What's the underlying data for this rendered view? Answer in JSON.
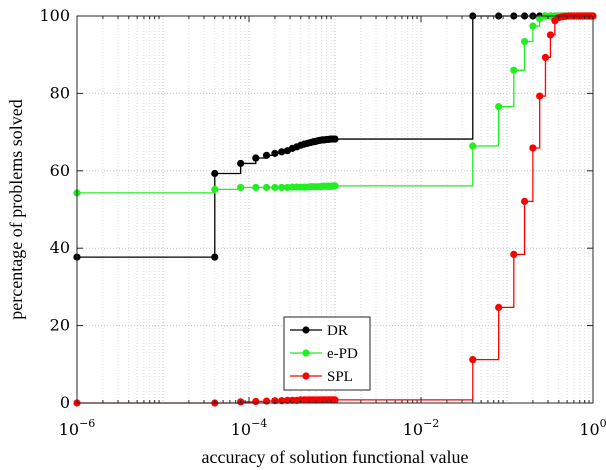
{
  "chart_data": {
    "type": "line",
    "step": true,
    "xscale": "log",
    "xlim": [
      1e-06,
      1
    ],
    "ylim": [
      0,
      100
    ],
    "xlabel": "accuracy of solution functional value",
    "ylabel": "percentage of problems solved",
    "grid": true,
    "legend_position": "bottom-center",
    "x_ticks": [
      {
        "value": 1e-06,
        "base": "10",
        "exp": "−6"
      },
      {
        "value": 0.0001,
        "base": "10",
        "exp": "−4"
      },
      {
        "value": 0.01,
        "base": "10",
        "exp": "−2"
      },
      {
        "value": 1,
        "base": "10",
        "exp": "0"
      }
    ],
    "y_ticks": [
      {
        "value": 0,
        "label": "0"
      },
      {
        "value": 20,
        "label": "20"
      },
      {
        "value": 40,
        "label": "40"
      },
      {
        "value": 60,
        "label": "60"
      },
      {
        "value": 80,
        "label": "80"
      },
      {
        "value": 100,
        "label": "100"
      }
    ],
    "series": [
      {
        "name": "DR",
        "color": "#000000",
        "x": [
          1e-06,
          4e-05,
          4e-05,
          8e-05,
          0.00012,
          0.00016,
          0.0002,
          0.00024,
          0.00028,
          0.00032,
          0.00036,
          0.0004,
          0.00044,
          0.00048,
          0.00052,
          0.00056,
          0.0006,
          0.00064,
          0.00068,
          0.00072,
          0.00076,
          0.0008,
          0.00084,
          0.00088,
          0.00092,
          0.00096,
          0.001,
          0.04,
          0.08,
          0.12,
          0.16,
          0.2,
          0.24,
          0.28,
          0.32,
          0.36,
          0.4,
          0.44,
          0.48,
          0.52,
          0.56,
          0.6,
          0.64,
          0.68,
          0.72,
          0.76,
          0.8,
          0.84,
          0.88,
          0.92,
          0.96,
          1
        ],
        "y": [
          37.7,
          37.7,
          59.3,
          61.9,
          63.3,
          64.0,
          64.5,
          64.9,
          65.2,
          65.8,
          66.2,
          66.6,
          66.9,
          67.1,
          67.3,
          67.5,
          67.6,
          67.8,
          67.9,
          68.0,
          68.0,
          68.1,
          68.1,
          68.2,
          68.2,
          68.2,
          68.2,
          100,
          100,
          100,
          100,
          100,
          100,
          100,
          100,
          100,
          100,
          100,
          100,
          100,
          100,
          100,
          100,
          100,
          100,
          100,
          100,
          100,
          100,
          100,
          100,
          100
        ]
      },
      {
        "name": "e-PD",
        "color": "#22ee22",
        "x": [
          1e-06,
          4e-05,
          8e-05,
          0.00012,
          0.00016,
          0.0002,
          0.00024,
          0.00028,
          0.00032,
          0.00036,
          0.0004,
          0.00044,
          0.00048,
          0.00052,
          0.00056,
          0.0006,
          0.00064,
          0.00068,
          0.00072,
          0.00076,
          0.0008,
          0.00084,
          0.00088,
          0.00092,
          0.00096,
          0.001,
          0.04,
          0.08,
          0.12,
          0.16,
          0.2,
          0.24,
          0.28,
          0.32,
          0.36,
          0.4,
          0.44,
          0.48,
          0.52,
          0.56,
          0.6,
          0.64,
          0.68,
          0.72,
          0.76,
          0.8,
          0.84,
          0.88,
          0.92,
          0.96,
          1
        ],
        "y": [
          54.3,
          55.2,
          55.7,
          55.7,
          55.7,
          55.7,
          55.7,
          55.7,
          55.8,
          55.8,
          55.8,
          55.8,
          55.8,
          55.9,
          55.9,
          55.9,
          55.9,
          55.9,
          56.0,
          56.0,
          56.0,
          56.0,
          56.0,
          56.0,
          56.1,
          56.1,
          66.4,
          76.6,
          86.0,
          93.4,
          97.4,
          99.3,
          100,
          100,
          100,
          100,
          100,
          100,
          100,
          100,
          100,
          100,
          100,
          100,
          100,
          100,
          100,
          100,
          100,
          100,
          100
        ]
      },
      {
        "name": "SPL",
        "color": "#ff0000",
        "x": [
          1e-06,
          4e-05,
          8e-05,
          0.00012,
          0.00016,
          0.0002,
          0.00024,
          0.00028,
          0.00032,
          0.00036,
          0.0004,
          0.00044,
          0.00048,
          0.00052,
          0.00056,
          0.0006,
          0.00064,
          0.00068,
          0.00072,
          0.00076,
          0.0008,
          0.00084,
          0.00088,
          0.00092,
          0.00096,
          0.001,
          0.04,
          0.08,
          0.12,
          0.16,
          0.2,
          0.24,
          0.28,
          0.32,
          0.36,
          0.4,
          0.44,
          0.48,
          0.52,
          0.56,
          0.6,
          0.64,
          0.68,
          0.72,
          0.76,
          0.8,
          0.84,
          0.88,
          0.92,
          0.96,
          1
        ],
        "y": [
          0,
          0,
          0.3,
          0.4,
          0.5,
          0.6,
          0.6,
          0.7,
          0.7,
          0.7,
          0.8,
          0.8,
          0.8,
          0.8,
          0.8,
          0.8,
          0.8,
          0.8,
          0.8,
          0.8,
          0.8,
          0.8,
          0.8,
          0.8,
          0.8,
          0.8,
          11.2,
          24.7,
          38.4,
          52.1,
          65.9,
          79.3,
          89.3,
          95.1,
          98.8,
          99.6,
          99.8,
          99.9,
          100,
          100,
          100,
          100,
          100,
          100,
          100,
          100,
          100,
          100,
          100,
          100,
          100
        ]
      }
    ]
  }
}
